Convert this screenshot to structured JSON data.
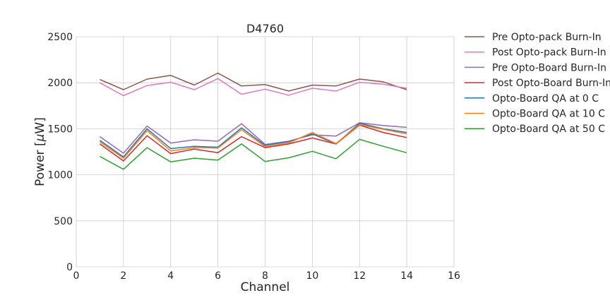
{
  "chart_data": {
    "type": "line",
    "title": "D4760",
    "xlabel": "Channel",
    "ylabel_prefix": "Power [",
    "ylabel_mu": "μ",
    "ylabel_suffix": "W]",
    "xlim": [
      0,
      16
    ],
    "ylim": [
      0,
      2500
    ],
    "xticks": [
      0,
      2,
      4,
      6,
      8,
      10,
      12,
      14,
      16
    ],
    "yticks": [
      0,
      500,
      1000,
      1500,
      2000,
      2500
    ],
    "grid": true,
    "legend_position": "outside-right",
    "x": [
      1,
      2,
      3,
      4,
      5,
      6,
      7,
      8,
      9,
      10,
      11,
      12,
      13,
      14
    ],
    "series": [
      {
        "name": "Pre Opto-pack Burn-In",
        "color": "#8c564b",
        "values": [
          2035,
          1925,
          2040,
          2080,
          1975,
          2105,
          1965,
          1980,
          1910,
          1975,
          1965,
          2040,
          2010,
          1925
        ]
      },
      {
        "name": "Post Opto-pack Burn-In",
        "color": "#e377c2",
        "values": [
          2000,
          1860,
          1970,
          2005,
          1925,
          2045,
          1875,
          1930,
          1865,
          1940,
          1910,
          2005,
          1985,
          1940
        ]
      },
      {
        "name": "Pre Opto-Board Burn-In",
        "color": "#9467bd",
        "values": [
          1415,
          1235,
          1530,
          1345,
          1380,
          1365,
          1555,
          1330,
          1365,
          1435,
          1420,
          1565,
          1535,
          1515
        ]
      },
      {
        "name": "Post Opto-Board Burn-In",
        "color": "#d62728",
        "values": [
          1335,
          1150,
          1425,
          1230,
          1280,
          1240,
          1415,
          1295,
          1335,
          1400,
          1335,
          1540,
          1460,
          1405
        ]
      },
      {
        "name": "Opto-Board QA at 0 C",
        "color": "#1f77b4",
        "values": [
          1375,
          1195,
          1500,
          1285,
          1310,
          1300,
          1510,
          1320,
          1360,
          1445,
          1335,
          1560,
          1500,
          1460
        ]
      },
      {
        "name": "Opto-Board QA at 10 C",
        "color": "#ff7f0e",
        "values": [
          1360,
          1180,
          1480,
          1260,
          1295,
          1290,
          1490,
          1305,
          1345,
          1460,
          1340,
          1545,
          1495,
          1445
        ]
      },
      {
        "name": "Opto-Board QA at 50 C",
        "color": "#2ca02c",
        "values": [
          1200,
          1060,
          1295,
          1140,
          1180,
          1160,
          1335,
          1145,
          1185,
          1255,
          1175,
          1385,
          1310,
          1240
        ]
      }
    ]
  }
}
